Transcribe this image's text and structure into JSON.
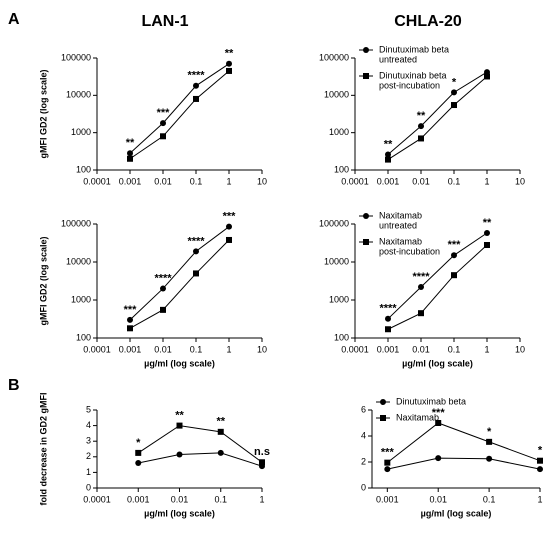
{
  "panel_labels": [
    "A",
    "B"
  ],
  "column_titles": [
    "LAN-1",
    "CHLA-20"
  ],
  "chart_data": [
    {
      "type": "line",
      "ylabel": "gMFI GD2 (log scale)",
      "x": [
        0.001,
        0.01,
        0.1,
        1
      ],
      "xlim": [
        0.0001,
        10
      ],
      "xticks": [
        0.0001,
        0.001,
        0.01,
        0.1,
        1,
        10
      ],
      "xlog": true,
      "ylim": [
        100,
        100000
      ],
      "yticks": [
        100,
        1000,
        10000,
        100000
      ],
      "ylog": true,
      "series": [
        {
          "marker": "circle",
          "color": "#000000",
          "values": [
            280,
            1800,
            18000,
            70000
          ]
        },
        {
          "marker": "square",
          "color": "#000000",
          "values": [
            200,
            800,
            8000,
            45000
          ]
        }
      ],
      "annotations": [
        {
          "x": 0.001,
          "text": "**"
        },
        {
          "x": 0.01,
          "text": "***"
        },
        {
          "x": 0.1,
          "text": "****"
        },
        {
          "x": 1,
          "text": "**"
        }
      ]
    },
    {
      "type": "line",
      "x": [
        0.001,
        0.01,
        0.1,
        1
      ],
      "xlim": [
        0.0001,
        10
      ],
      "xticks": [
        0.0001,
        0.001,
        0.01,
        0.1,
        1,
        10
      ],
      "xlog": true,
      "ylim": [
        100,
        100000
      ],
      "yticks": [
        100,
        1000,
        10000,
        100000
      ],
      "ylog": true,
      "legend": "upper left",
      "series": [
        {
          "name": [
            "Dinutuximab beta",
            "untreated"
          ],
          "marker": "circle",
          "color": "#000000",
          "values": [
            260,
            1500,
            12000,
            42000
          ]
        },
        {
          "name": [
            "Dinutuxinab beta",
            "post-incubation"
          ],
          "marker": "square",
          "color": "#000000",
          "values": [
            190,
            700,
            5500,
            32000
          ]
        }
      ],
      "annotations": [
        {
          "x": 0.001,
          "text": "**"
        },
        {
          "x": 0.01,
          "text": "**"
        },
        {
          "x": 0.1,
          "text": "*"
        }
      ]
    },
    {
      "type": "line",
      "ylabel": "gMFI GD2 (log scale)",
      "xlabel": "µg/ml  (log scale)",
      "x": [
        0.001,
        0.01,
        0.1,
        1
      ],
      "xlim": [
        0.0001,
        10
      ],
      "xticks": [
        0.0001,
        0.001,
        0.01,
        0.1,
        1,
        10
      ],
      "xlog": true,
      "ylim": [
        100,
        100000
      ],
      "yticks": [
        100,
        1000,
        10000,
        100000
      ],
      "ylog": true,
      "series": [
        {
          "marker": "circle",
          "color": "#000000",
          "values": [
            300,
            2000,
            19000,
            85000
          ]
        },
        {
          "marker": "square",
          "color": "#000000",
          "values": [
            180,
            550,
            5000,
            38000
          ]
        }
      ],
      "annotations": [
        {
          "x": 0.001,
          "text": "***"
        },
        {
          "x": 0.01,
          "text": "****"
        },
        {
          "x": 0.1,
          "text": "****"
        },
        {
          "x": 1,
          "text": "***"
        }
      ]
    },
    {
      "type": "line",
      "xlabel": "µg/ml  (log scale)",
      "x": [
        0.001,
        0.01,
        0.1,
        1
      ],
      "xlim": [
        0.0001,
        10
      ],
      "xticks": [
        0.0001,
        0.001,
        0.01,
        0.1,
        1,
        10
      ],
      "xlog": true,
      "ylim": [
        100,
        100000
      ],
      "yticks": [
        100,
        1000,
        10000,
        100000
      ],
      "ylog": true,
      "legend": "upper left",
      "series": [
        {
          "name": [
            "Naxitamab",
            "untreated"
          ],
          "marker": "circle",
          "color": "#000000",
          "values": [
            320,
            2200,
            15000,
            58000
          ]
        },
        {
          "name": [
            "Naxitamab",
            "post-incubation"
          ],
          "marker": "square",
          "color": "#000000",
          "values": [
            170,
            450,
            4500,
            28000
          ]
        }
      ],
      "annotations": [
        {
          "x": 0.001,
          "text": "****"
        },
        {
          "x": 0.01,
          "text": "****"
        },
        {
          "x": 0.1,
          "text": "***"
        },
        {
          "x": 1,
          "text": "**"
        }
      ]
    },
    {
      "type": "line",
      "ylabel": "fold decrease in GD2 gMFI",
      "xlabel": "µg/ml  (log scale)",
      "x": [
        0.001,
        0.01,
        0.1,
        1
      ],
      "xlim": [
        0.0001,
        1
      ],
      "xticks": [
        0.0001,
        0.001,
        0.01,
        0.1,
        1
      ],
      "xlog": true,
      "ylim": [
        0,
        5
      ],
      "yticks": [
        0,
        1,
        2,
        3,
        4,
        5
      ],
      "series": [
        {
          "marker": "circle",
          "color": "#000000",
          "values": [
            1.6,
            2.15,
            2.25,
            1.4
          ]
        },
        {
          "marker": "square",
          "color": "#000000",
          "values": [
            2.25,
            4.0,
            3.6,
            1.65
          ]
        }
      ],
      "annotations": [
        {
          "x": 0.001,
          "text": "*"
        },
        {
          "x": 0.01,
          "text": "**"
        },
        {
          "x": 0.1,
          "text": "**"
        },
        {
          "x": 1,
          "text": "n.s"
        }
      ]
    },
    {
      "type": "line",
      "xlabel": "µg/ml  (log scale)",
      "x": [
        0.001,
        0.01,
        0.1,
        1
      ],
      "xlim": [
        0.0005,
        1
      ],
      "xticks": [
        0.001,
        0.01,
        0.1,
        1
      ],
      "xlog": true,
      "ylim": [
        0,
        6
      ],
      "yticks": [
        0,
        2,
        4,
        6
      ],
      "legend": "upper left",
      "series": [
        {
          "name": [
            "Dinutuximab beta"
          ],
          "marker": "circle",
          "color": "#000000",
          "values": [
            1.45,
            2.3,
            2.25,
            1.45
          ]
        },
        {
          "name": [
            "Naxitamab"
          ],
          "marker": "square",
          "color": "#000000",
          "values": [
            1.95,
            5.0,
            3.55,
            2.1
          ]
        }
      ],
      "annotations": [
        {
          "x": 0.001,
          "text": "***"
        },
        {
          "x": 0.01,
          "text": "***"
        },
        {
          "x": 0.1,
          "text": "*"
        },
        {
          "x": 1,
          "text": "*"
        }
      ]
    }
  ]
}
